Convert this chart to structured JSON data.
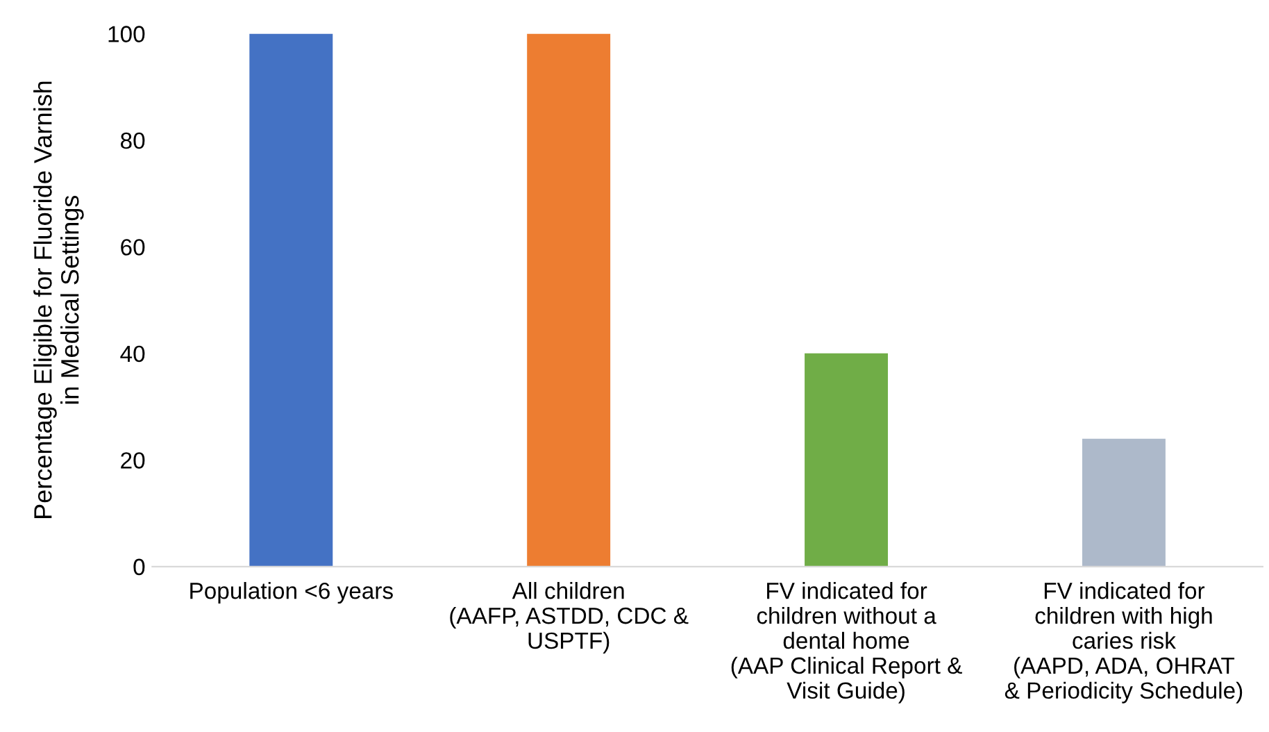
{
  "chart_data": {
    "type": "bar",
    "ylabel": "Percentage Eligible for Fluoride Varnish\nin Medical Settings",
    "categories": [
      "Population <6 years",
      "All children\n(AAFP, ASTDD, CDC &\nUSPTF)",
      "FV indicated for\nchildren without a\ndental home\n(AAP Clinical Report &\nVisit Guide)",
      "FV indicated for\nchildren with high\ncaries risk\n(AAPD, ADA, OHRAT\n& Periodicity Schedule)"
    ],
    "values": [
      100,
      100,
      40,
      24
    ],
    "colors": [
      "#4472c4",
      "#ed7d31",
      "#70ad47",
      "#adb9ca"
    ],
    "ylim": [
      0,
      100
    ],
    "yticks": [
      0,
      20,
      40,
      60,
      80,
      100
    ],
    "grid": false,
    "legend": false
  }
}
